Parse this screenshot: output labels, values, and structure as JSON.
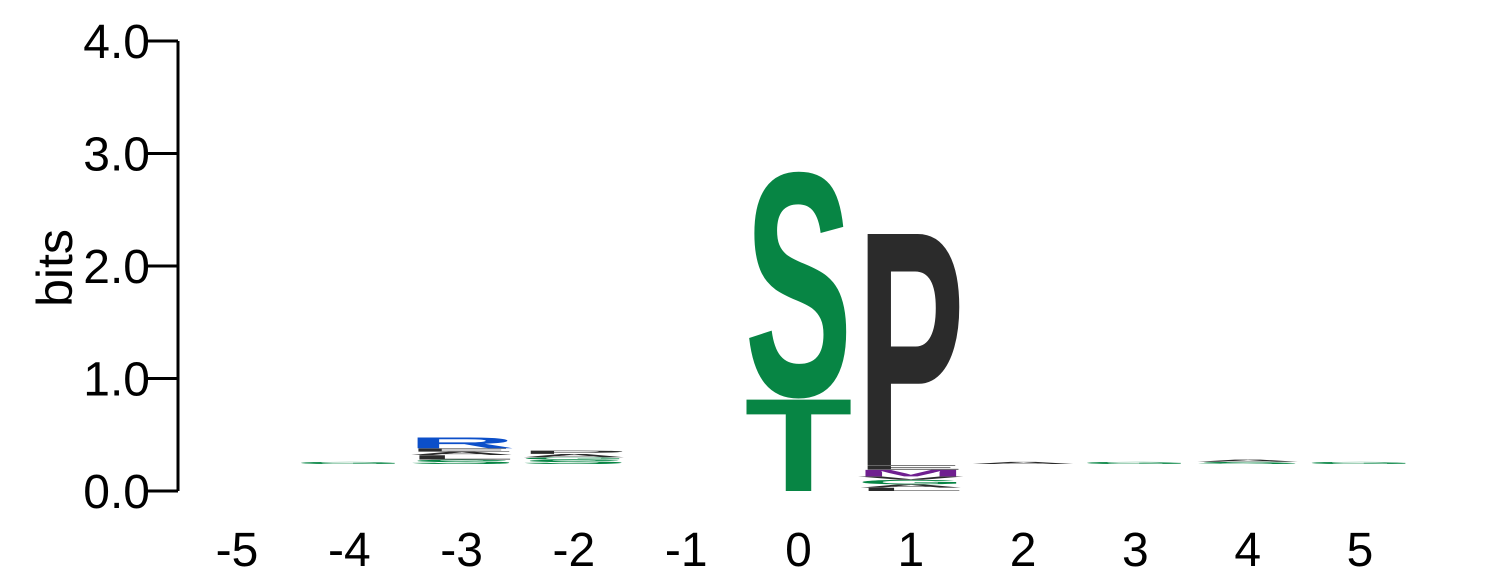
{
  "chart_data": {
    "type": "sequence-logo",
    "ylabel": "bits",
    "ylim": [
      0,
      4
    ],
    "yticks": [
      "0.0",
      "1.0",
      "2.0",
      "3.0",
      "4.0"
    ],
    "yticks_values": [
      0,
      1,
      2,
      3,
      4
    ],
    "positions": [
      "-5",
      "-4",
      "-3",
      "-2",
      "-1",
      "0",
      "1",
      "2",
      "3",
      "4",
      "5"
    ],
    "colors": {
      "S": "#078544",
      "T": "#078544",
      "P": "#2b2b2b",
      "R": "#0c4fc9",
      "M": "#6f1f8f",
      "A": "#2b2b2b",
      "L": "#2b2b2b",
      "G": "#078544",
      "E": "#2b2b2b",
      "V": "#2b2b2b",
      "K": "#0c4fc9"
    },
    "stacks": [
      [],
      [
        {
          "letter": "G",
          "bits": 0.02
        }
      ],
      [
        {
          "letter": "S",
          "bits": 0.04
        },
        {
          "letter": "L",
          "bits": 0.04
        },
        {
          "letter": "A",
          "bits": 0.03
        },
        {
          "letter": "E",
          "bits": 0.03
        },
        {
          "letter": "R",
          "bits": 0.1
        }
      ],
      [
        {
          "letter": "S",
          "bits": 0.04
        },
        {
          "letter": "G",
          "bits": 0.02
        },
        {
          "letter": "A",
          "bits": 0.03
        },
        {
          "letter": "P",
          "bits": 0.03
        }
      ],
      [],
      [
        {
          "letter": "T",
          "bits": 0.85
        },
        {
          "letter": "S",
          "bits": 2.05
        }
      ],
      [
        {
          "letter": "L",
          "bits": 0.03
        },
        {
          "letter": "A",
          "bits": 0.03
        },
        {
          "letter": "G",
          "bits": 0.04
        },
        {
          "letter": "V",
          "bits": 0.03
        },
        {
          "letter": "M",
          "bits": 0.06
        },
        {
          "letter": "E",
          "bits": 0.04
        },
        {
          "letter": "P",
          "bits": 2.15
        }
      ],
      [
        {
          "letter": "A",
          "bits": 0.02
        }
      ],
      [
        {
          "letter": "G",
          "bits": 0.02
        }
      ],
      [
        {
          "letter": "S",
          "bits": 0.02
        },
        {
          "letter": "A",
          "bits": 0.02
        }
      ],
      [
        {
          "letter": "G",
          "bits": 0.02
        }
      ]
    ]
  }
}
